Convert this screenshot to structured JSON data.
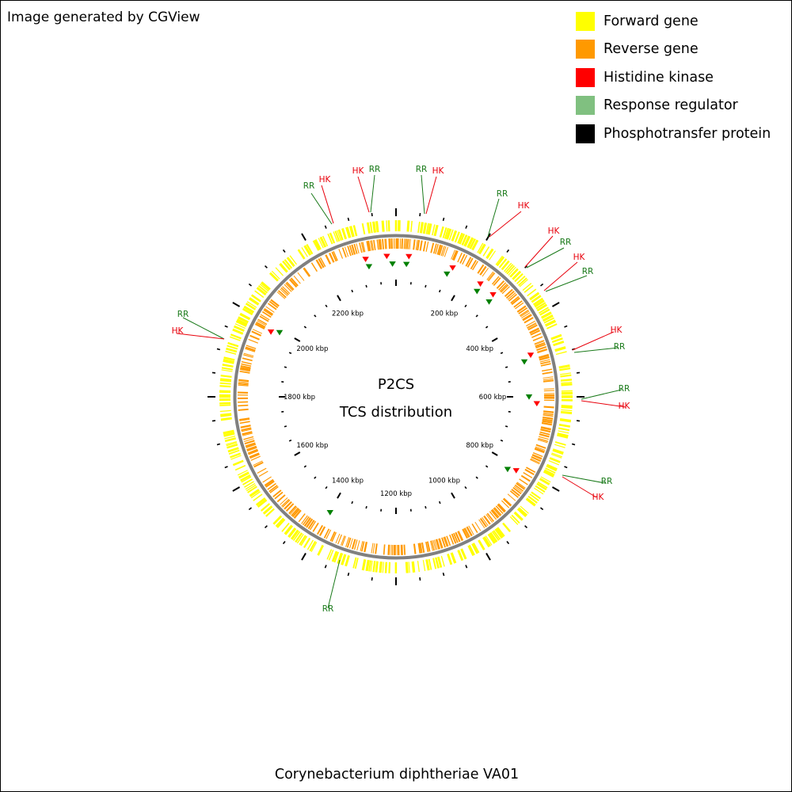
{
  "credit": "Image generated by CGView",
  "species": "Corynebacterium diphtheriae VA01",
  "map": {
    "title": "P2CS",
    "subtitle": "TCS distribution",
    "genome_length_kbp": 2400,
    "tick_labels": [
      "200 kbp",
      "400 kbp",
      "600 kbp",
      "800 kbp",
      "1000 kbp",
      "1200 kbp",
      "1400 kbp",
      "1600 kbp",
      "1800 kbp",
      "2000 kbp",
      "2200 kbp"
    ],
    "tick_positions_kbp": [
      200,
      400,
      600,
      800,
      1000,
      1200,
      1400,
      1600,
      1800,
      2000,
      2200
    ]
  },
  "legend": [
    {
      "label": "Forward gene",
      "color": "#FFFF00"
    },
    {
      "label": "Reverse gene",
      "color": "#FF9900"
    },
    {
      "label": "Histidine kinase",
      "color": "#FF0000"
    },
    {
      "label": "Response regulator",
      "color": "#80C080"
    },
    {
      "label": "Phosphotransfer protein",
      "color": "#000000"
    }
  ],
  "colors": {
    "forward": "#FFFF00",
    "reverse": "#FF9900",
    "backbone": "#808080",
    "hk": "#FF0000",
    "rr": "#008000",
    "rr_label": "#1A7A1A",
    "hk_label": "#E8000B"
  },
  "features": [
    {
      "type": "RR",
      "kbp": 2322
    },
    {
      "type": "HK",
      "kbp": 2317
    },
    {
      "type": "HK",
      "kbp": 2375
    },
    {
      "type": "RR",
      "kbp": 2390
    },
    {
      "type": "RR",
      "kbp": 30
    },
    {
      "type": "HK",
      "kbp": 35
    },
    {
      "type": "RR",
      "kbp": 150
    },
    {
      "type": "HK",
      "kbp": 158
    },
    {
      "type": "HK",
      "kbp": 245
    },
    {
      "type": "RR",
      "kbp": 250
    },
    {
      "type": "HK",
      "kbp": 290
    },
    {
      "type": "RR",
      "kbp": 296
    },
    {
      "type": "HK",
      "kbp": 485
    },
    {
      "type": "RR",
      "kbp": 498
    },
    {
      "type": "RR",
      "kbp": 600
    },
    {
      "type": "HK",
      "kbp": 618
    },
    {
      "type": "HK",
      "kbp": 810
    },
    {
      "type": "RR",
      "kbp": 820
    },
    {
      "type": "RR",
      "kbp": 1398
    },
    {
      "type": "HK",
      "kbp": 1983
    },
    {
      "type": "RR",
      "kbp": 1993
    }
  ],
  "callouts": [
    {
      "text": "RR",
      "type": "RR"
    },
    {
      "text": "HK",
      "type": "HK"
    },
    {
      "text": "HK",
      "type": "HK"
    },
    {
      "text": "RR",
      "type": "RR"
    },
    {
      "text": "RR",
      "type": "RR"
    },
    {
      "text": "HK",
      "type": "HK"
    },
    {
      "text": "RR",
      "type": "RR"
    },
    {
      "text": "HK",
      "type": "HK"
    },
    {
      "text": "HK",
      "type": "HK"
    },
    {
      "text": "RR",
      "type": "RR"
    },
    {
      "text": "HK",
      "type": "HK"
    },
    {
      "text": "RR",
      "type": "RR"
    },
    {
      "text": "HK",
      "type": "HK"
    },
    {
      "text": "RR",
      "type": "RR"
    },
    {
      "text": "RR",
      "type": "RR"
    },
    {
      "text": "HK",
      "type": "HK"
    },
    {
      "text": "RR",
      "type": "RR"
    },
    {
      "text": "HK",
      "type": "HK"
    },
    {
      "text": "RR",
      "type": "RR"
    },
    {
      "text": "RR",
      "type": "RR"
    },
    {
      "text": "HK",
      "type": "HK"
    }
  ]
}
